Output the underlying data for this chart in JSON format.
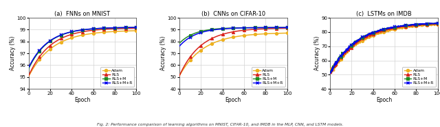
{
  "fig_width": 6.4,
  "fig_height": 1.86,
  "dpi": 100,
  "subplots": [
    {
      "title": "(a)  FNNs on MNIST",
      "xlabel": "Epoch",
      "ylabel": "Accuracy (%)",
      "xlim": [
        0,
        100
      ],
      "ylim": [
        94,
        100
      ],
      "yticks": [
        94,
        95,
        96,
        97,
        98,
        99,
        100
      ],
      "xticks": [
        0,
        20,
        40,
        60,
        80,
        100
      ],
      "series": [
        {
          "label": "Adam",
          "color": "#EDB120",
          "marker": "o",
          "marker_every": 10,
          "start": 95.05,
          "end": 98.95,
          "rate": 4.5,
          "noise": 0.0
        },
        {
          "label": "RLS",
          "color": "#D9231D",
          "marker": "^",
          "marker_every": 10,
          "start": 95.1,
          "end": 99.15,
          "rate": 5.0,
          "noise": 0.0
        },
        {
          "label": "RLS+M",
          "color": "#228B22",
          "marker": "s",
          "marker_every": 10,
          "start": 95.7,
          "end": 99.2,
          "rate": 5.5,
          "noise": 0.0
        },
        {
          "label": "RLS+M+R",
          "color": "#0000EE",
          "marker": "x",
          "marker_every": 10,
          "start": 95.8,
          "end": 99.2,
          "rate": 5.5,
          "noise": 0.0
        }
      ]
    },
    {
      "title": "(b)  CNNs on CIFAR-10",
      "xlabel": "Epoch",
      "ylabel": "Accuracy (%)",
      "xlim": [
        0,
        100
      ],
      "ylim": [
        40,
        100
      ],
      "yticks": [
        40,
        50,
        60,
        70,
        80,
        90,
        100
      ],
      "xticks": [
        0,
        20,
        40,
        60,
        80,
        100
      ],
      "series": [
        {
          "label": "Adam",
          "color": "#EDB120",
          "marker": "o",
          "marker_every": 10,
          "start": 51.0,
          "end": 87.5,
          "rate": 4.5,
          "noise": 0.0
        },
        {
          "label": "RLS",
          "color": "#D9231D",
          "marker": "^",
          "marker_every": 10,
          "start": 51.0,
          "end": 91.5,
          "rate": 5.0,
          "noise": 0.0
        },
        {
          "label": "RLS+M",
          "color": "#228B22",
          "marker": "s",
          "marker_every": 10,
          "start": 78.5,
          "end": 91.8,
          "rate": 7.0,
          "noise": 0.0
        },
        {
          "label": "RLS+M+R",
          "color": "#0000EE",
          "marker": "x",
          "marker_every": 10,
          "start": 76.0,
          "end": 91.8,
          "rate": 6.5,
          "noise": 0.0
        }
      ]
    },
    {
      "title": "(c)  LSTMs on IMDB",
      "xlabel": "Epoch",
      "ylabel": "Accuracy (%)",
      "xlim": [
        0,
        100
      ],
      "ylim": [
        40,
        90
      ],
      "yticks": [
        40,
        50,
        60,
        70,
        80,
        90
      ],
      "xticks": [
        0,
        20,
        40,
        60,
        80,
        100
      ],
      "series": [
        {
          "label": "Adam",
          "color": "#EDB120",
          "marker": "o",
          "marker_every": 10,
          "start": 51.0,
          "end": 86.2,
          "rate": 3.5,
          "noise": 1.2
        },
        {
          "label": "RLS",
          "color": "#D9231D",
          "marker": "^",
          "marker_every": 10,
          "start": 51.0,
          "end": 86.4,
          "rate": 3.8,
          "noise": 1.0
        },
        {
          "label": "RLS+M",
          "color": "#228B22",
          "marker": "s",
          "marker_every": 10,
          "start": 51.5,
          "end": 86.7,
          "rate": 4.0,
          "noise": 0.8
        },
        {
          "label": "RLS+M+R",
          "color": "#0000EE",
          "marker": "x",
          "marker_every": 10,
          "start": 51.0,
          "end": 86.8,
          "rate": 4.0,
          "noise": 0.8
        }
      ]
    }
  ],
  "caption": "Fig. 2: Performance comparison of learning algorithms on MNIST, CIFAR-10, and IMDB in the MLP, CNN, and LSTM models.",
  "legend_labels": [
    "Adam",
    "RLS",
    "RLS+M",
    "RLS+M+R"
  ],
  "legend_colors": [
    "#EDB120",
    "#D9231D",
    "#228B22",
    "#0000EE"
  ],
  "legend_markers": [
    "o",
    "^",
    "s",
    "x"
  ]
}
